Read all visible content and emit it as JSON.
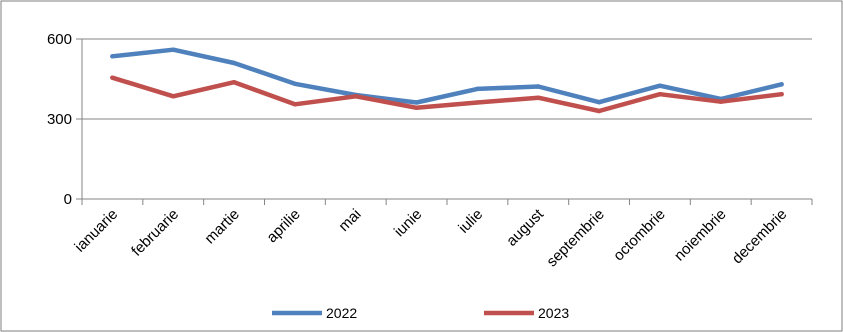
{
  "chart_data": {
    "type": "line",
    "categories": [
      "ianuarie",
      "februarie",
      "martie",
      "aprilie",
      "mai",
      "iunie",
      "iulie",
      "august",
      "septembrie",
      "octombrie",
      "noiembrie",
      "decembrie"
    ],
    "series": [
      {
        "name": "2022",
        "color": "#4F81BD",
        "values": [
          535,
          560,
          510,
          432,
          390,
          362,
          413,
          422,
          363,
          425,
          375,
          430
        ]
      },
      {
        "name": "2023",
        "color": "#C0504D",
        "values": [
          455,
          385,
          438,
          355,
          385,
          342,
          362,
          380,
          330,
          393,
          365,
          393
        ]
      }
    ],
    "ylim": [
      0,
      600
    ],
    "yticks": [
      0,
      300,
      600
    ],
    "grid": true,
    "legend_position": "bottom"
  }
}
